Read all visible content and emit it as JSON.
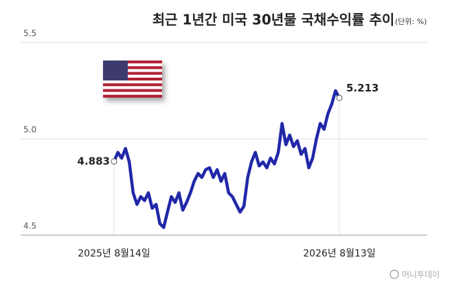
{
  "chart_data": {
    "type": "line",
    "title": "최근 1년간 미국 30년물 국채수익률 추이",
    "subtitle": "(단위: %)",
    "watermark": "머니투데이",
    "color": "#2128a8",
    "categories": [
      "2025년 8월14일",
      null,
      null,
      null,
      null,
      null,
      null,
      null,
      null,
      null,
      null,
      null,
      null,
      null,
      null,
      null,
      null,
      null,
      null,
      null,
      null,
      null,
      null,
      null,
      null,
      null,
      null,
      null,
      null,
      null,
      null,
      null,
      null,
      null,
      null,
      null,
      null,
      null,
      null,
      null,
      null,
      null,
      null,
      null,
      null,
      null,
      null,
      null,
      null,
      null,
      null,
      null,
      null,
      null,
      null,
      null,
      null,
      null,
      null,
      "2026년 8월13일"
    ],
    "values": [
      4.883,
      4.93,
      4.9,
      4.95,
      4.88,
      4.72,
      4.66,
      4.7,
      4.68,
      4.72,
      4.64,
      4.66,
      4.56,
      4.54,
      4.62,
      4.7,
      4.67,
      4.72,
      4.63,
      4.67,
      4.72,
      4.78,
      4.82,
      4.8,
      4.84,
      4.85,
      4.8,
      4.84,
      4.78,
      4.82,
      4.72,
      4.7,
      4.66,
      4.62,
      4.65,
      4.8,
      4.88,
      4.93,
      4.86,
      4.88,
      4.85,
      4.9,
      4.87,
      4.93,
      5.08,
      4.97,
      5.02,
      4.96,
      4.99,
      4.92,
      4.95,
      4.85,
      4.9,
      5.0,
      5.08,
      5.05,
      5.13,
      5.18,
      5.25,
      5.213
    ],
    "ylim": [
      4.5,
      5.5
    ],
    "yticks": [
      4.5,
      {
        "value": 5,
        "label": "5.0"
      },
      5.5
    ],
    "grid": true
  }
}
